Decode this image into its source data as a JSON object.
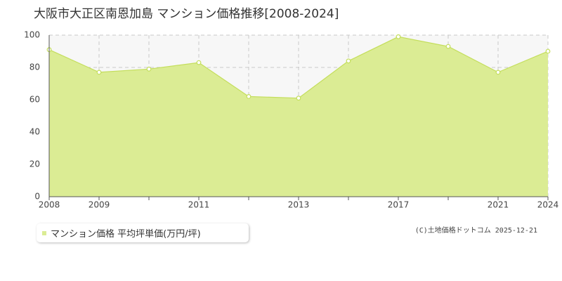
{
  "chart_data": {
    "type": "area",
    "title": "大阪市大正区南恩加島 マンション価格推移[2008-2024]",
    "categories": [
      "2008",
      "2009",
      null,
      "2011",
      null,
      "2013",
      null,
      "2017",
      null,
      "2021",
      "2024"
    ],
    "series": [
      {
        "name": "マンション価格 平均坪単価(万円/坪)",
        "color": "#dbec94",
        "values": [
          91,
          77,
          79,
          83,
          62,
          61,
          84,
          99,
          93,
          77,
          90
        ]
      }
    ],
    "ylim": [
      0,
      100
    ],
    "yticks": [
      0,
      20,
      40,
      60,
      80,
      100
    ],
    "grid": true,
    "credit": "(C)土地価格ドットコム 2025-12-21"
  }
}
